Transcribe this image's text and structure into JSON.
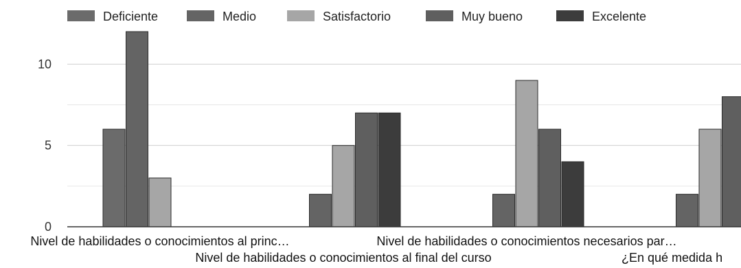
{
  "chart_data": {
    "type": "bar",
    "title": "",
    "xlabel": "",
    "ylabel": "",
    "ylim": [
      0,
      12
    ],
    "yticks": [
      0,
      5,
      10
    ],
    "grid": true,
    "legend_position": "top",
    "categories": [
      "Nivel de habilidades o conocimientos al princ…",
      "Nivel de habilidades o conocimientos al final del curso",
      "Nivel de habilidades o conocimientos necesarios par…",
      "¿En qué medida h"
    ],
    "series": [
      {
        "name": "Deficiente",
        "color": "#6b6b6b",
        "values": [
          6,
          0,
          0,
          0
        ]
      },
      {
        "name": "Medio",
        "color": "#646464",
        "values": [
          12,
          2,
          2,
          2
        ]
      },
      {
        "name": "Satisfactorio",
        "color": "#a6a6a6",
        "values": [
          3,
          5,
          9,
          6
        ]
      },
      {
        "name": "Muy bueno",
        "color": "#5f5f5f",
        "values": [
          0,
          7,
          6,
          8
        ]
      },
      {
        "name": "Excelente",
        "color": "#3c3c3c",
        "values": [
          0,
          7,
          4,
          0
        ]
      }
    ]
  }
}
